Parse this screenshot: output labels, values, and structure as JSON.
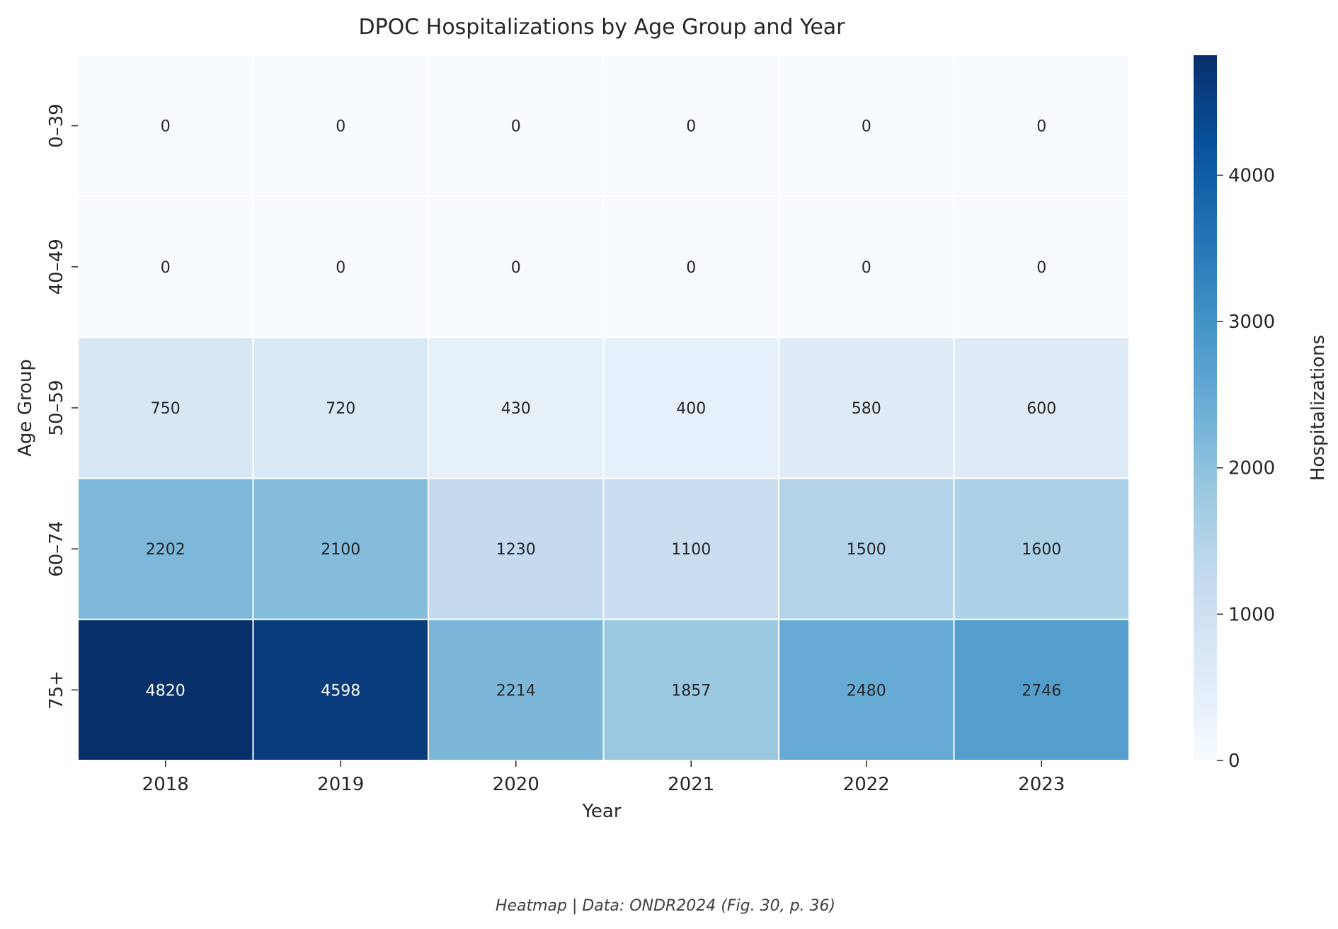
{
  "chart_data": {
    "type": "heatmap",
    "title": "DPOC Hospitalizations by Age Group and Year",
    "xlabel": "Year",
    "ylabel": "Age Group",
    "x_categories": [
      "2018",
      "2019",
      "2020",
      "2021",
      "2022",
      "2023"
    ],
    "y_categories": [
      "0–39",
      "40–49",
      "50–59",
      "60–74",
      "75+"
    ],
    "values": [
      [
        0,
        0,
        0,
        0,
        0,
        0
      ],
      [
        0,
        0,
        0,
        0,
        0,
        0
      ],
      [
        750,
        720,
        430,
        400,
        580,
        600
      ],
      [
        2202,
        2100,
        1230,
        1100,
        1500,
        1600
      ],
      [
        4820,
        4598,
        2214,
        1857,
        2480,
        2746
      ]
    ],
    "colormap": "Blues",
    "colorbar": {
      "label": "Hospitalizations",
      "range": [
        0,
        4820
      ],
      "ticks": [
        "0",
        "1000",
        "2000",
        "3000",
        "4000"
      ]
    },
    "grid": false,
    "legend": "colorbar-right"
  },
  "footer": "Heatmap | Data: ONDR2024 (Fig. 30, p. 36)"
}
